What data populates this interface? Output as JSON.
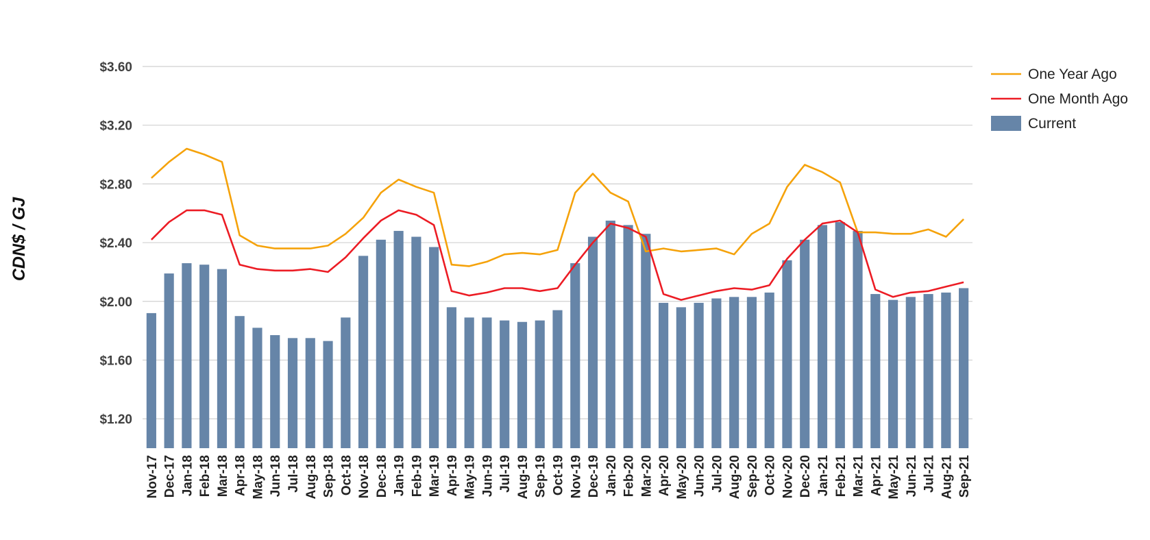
{
  "chart_data": {
    "type": "bar",
    "title": "",
    "ylabel": "CDN$ / GJ",
    "xlabel": "",
    "ylim": [
      1.0,
      3.6
    ],
    "yticks": [
      "$1.20",
      "$1.60",
      "$2.00",
      "$2.40",
      "$2.80",
      "$3.20",
      "$3.60"
    ],
    "ytick_values": [
      1.2,
      1.6,
      2.0,
      2.4,
      2.8,
      3.2,
      3.6
    ],
    "grid": true,
    "legend_position": "top-right",
    "categories": [
      "Nov-17",
      "Dec-17",
      "Jan-18",
      "Feb-18",
      "Mar-18",
      "Apr-18",
      "May-18",
      "Jun-18",
      "Jul-18",
      "Aug-18",
      "Sep-18",
      "Oct-18",
      "Nov-18",
      "Dec-18",
      "Jan-19",
      "Feb-19",
      "Mar-19",
      "Apr-19",
      "May-19",
      "Jun-19",
      "Jul-19",
      "Aug-19",
      "Sep-19",
      "Oct-19",
      "Nov-19",
      "Dec-19",
      "Jan-20",
      "Feb-20",
      "Mar-20",
      "Apr-20",
      "May-20",
      "Jun-20",
      "Jul-20",
      "Aug-20",
      "Sep-20",
      "Oct-20",
      "Nov-20",
      "Dec-20",
      "Jan-21",
      "Feb-21",
      "Mar-21",
      "Apr-21",
      "May-21",
      "Jun-21",
      "Jul-21",
      "Aug-21",
      "Sep-21"
    ],
    "series": [
      {
        "name": "One Year Ago",
        "type": "line",
        "color": "#f5a20a",
        "values": [
          2.84,
          2.95,
          3.04,
          3.0,
          2.95,
          2.45,
          2.38,
          2.36,
          2.36,
          2.36,
          2.38,
          2.46,
          2.57,
          2.74,
          2.83,
          2.78,
          2.74,
          2.25,
          2.24,
          2.27,
          2.32,
          2.33,
          2.32,
          2.35,
          2.74,
          2.87,
          2.74,
          2.68,
          2.34,
          2.36,
          2.34,
          2.35,
          2.36,
          2.32,
          2.46,
          2.53,
          2.78,
          2.93,
          2.88,
          2.81,
          2.47,
          2.47,
          2.46,
          2.46,
          2.49,
          2.44,
          2.56
        ]
      },
      {
        "name": "One Month Ago",
        "type": "line",
        "color": "#ec1c24",
        "values": [
          2.42,
          2.54,
          2.62,
          2.62,
          2.59,
          2.25,
          2.22,
          2.21,
          2.21,
          2.22,
          2.2,
          2.3,
          2.43,
          2.55,
          2.62,
          2.59,
          2.52,
          2.07,
          2.04,
          2.06,
          2.09,
          2.09,
          2.07,
          2.09,
          2.25,
          2.4,
          2.53,
          2.5,
          2.44,
          2.05,
          2.01,
          2.04,
          2.07,
          2.09,
          2.08,
          2.11,
          2.29,
          2.42,
          2.53,
          2.55,
          2.47,
          2.08,
          2.03,
          2.06,
          2.07,
          2.1,
          2.13
        ]
      },
      {
        "name": "Current",
        "type": "bar",
        "color": "#6685a8",
        "values": [
          1.92,
          2.19,
          2.26,
          2.25,
          2.22,
          1.9,
          1.82,
          1.77,
          1.75,
          1.75,
          1.73,
          1.89,
          2.31,
          2.42,
          2.48,
          2.44,
          2.37,
          1.96,
          1.89,
          1.89,
          1.87,
          1.86,
          1.87,
          1.94,
          2.26,
          2.44,
          2.55,
          2.52,
          2.46,
          1.99,
          1.96,
          1.99,
          2.02,
          2.03,
          2.03,
          2.06,
          2.28,
          2.42,
          2.52,
          2.54,
          2.48,
          2.05,
          2.01,
          2.03,
          2.05,
          2.06,
          2.09
        ]
      }
    ]
  }
}
